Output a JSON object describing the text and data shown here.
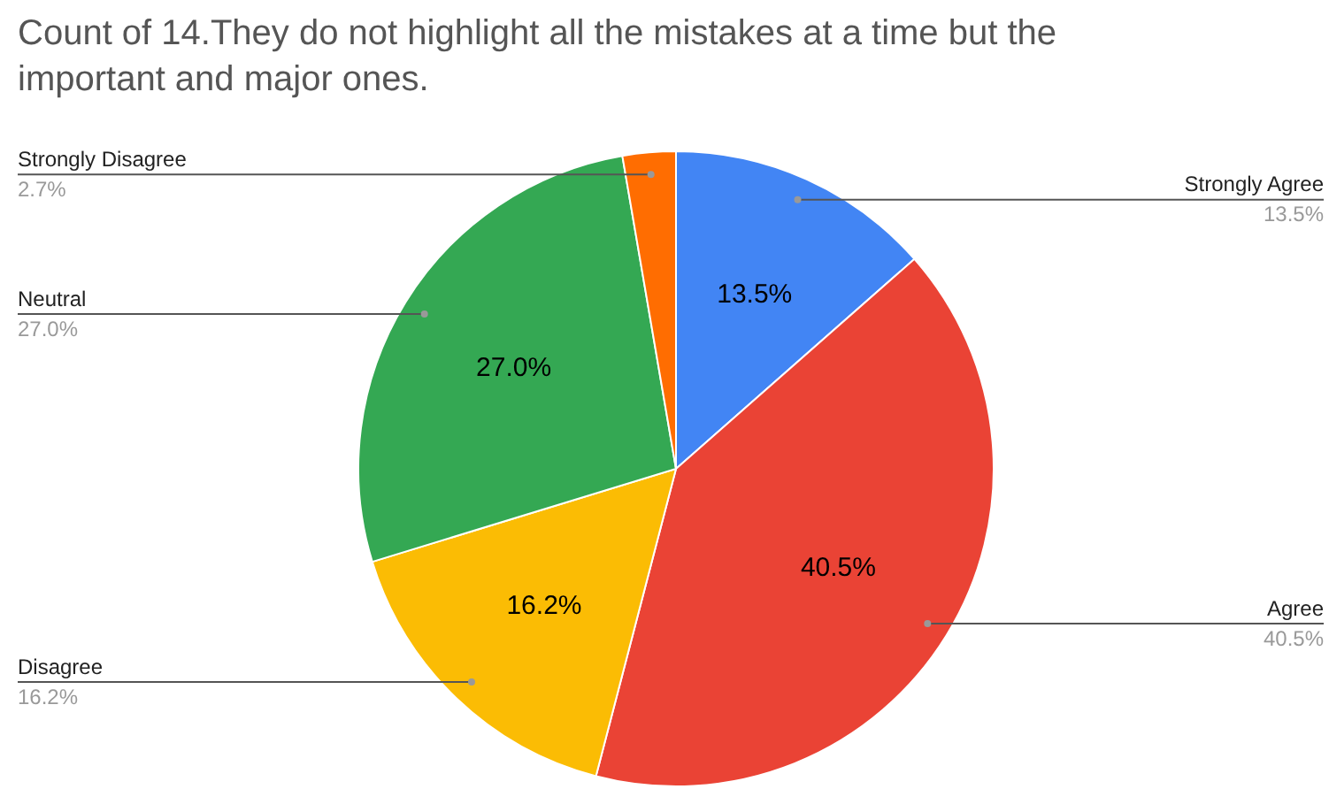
{
  "chart_data": {
    "type": "pie",
    "title": "Count of 14.They do not highlight all the mistakes at a time but the important and major ones.",
    "categories": [
      "Strongly Agree",
      "Agree",
      "Disagree",
      "Neutral",
      "Strongly Disagree"
    ],
    "values": [
      13.5,
      40.5,
      16.2,
      27.0,
      2.7
    ],
    "colors": [
      "#4285f4",
      "#ea4335",
      "#fbbc04",
      "#34a853",
      "#ff6d01"
    ],
    "value_labels": [
      "13.5%",
      "40.5%",
      "16.2%",
      "27.0%",
      "2.7%"
    ],
    "legend": false
  }
}
